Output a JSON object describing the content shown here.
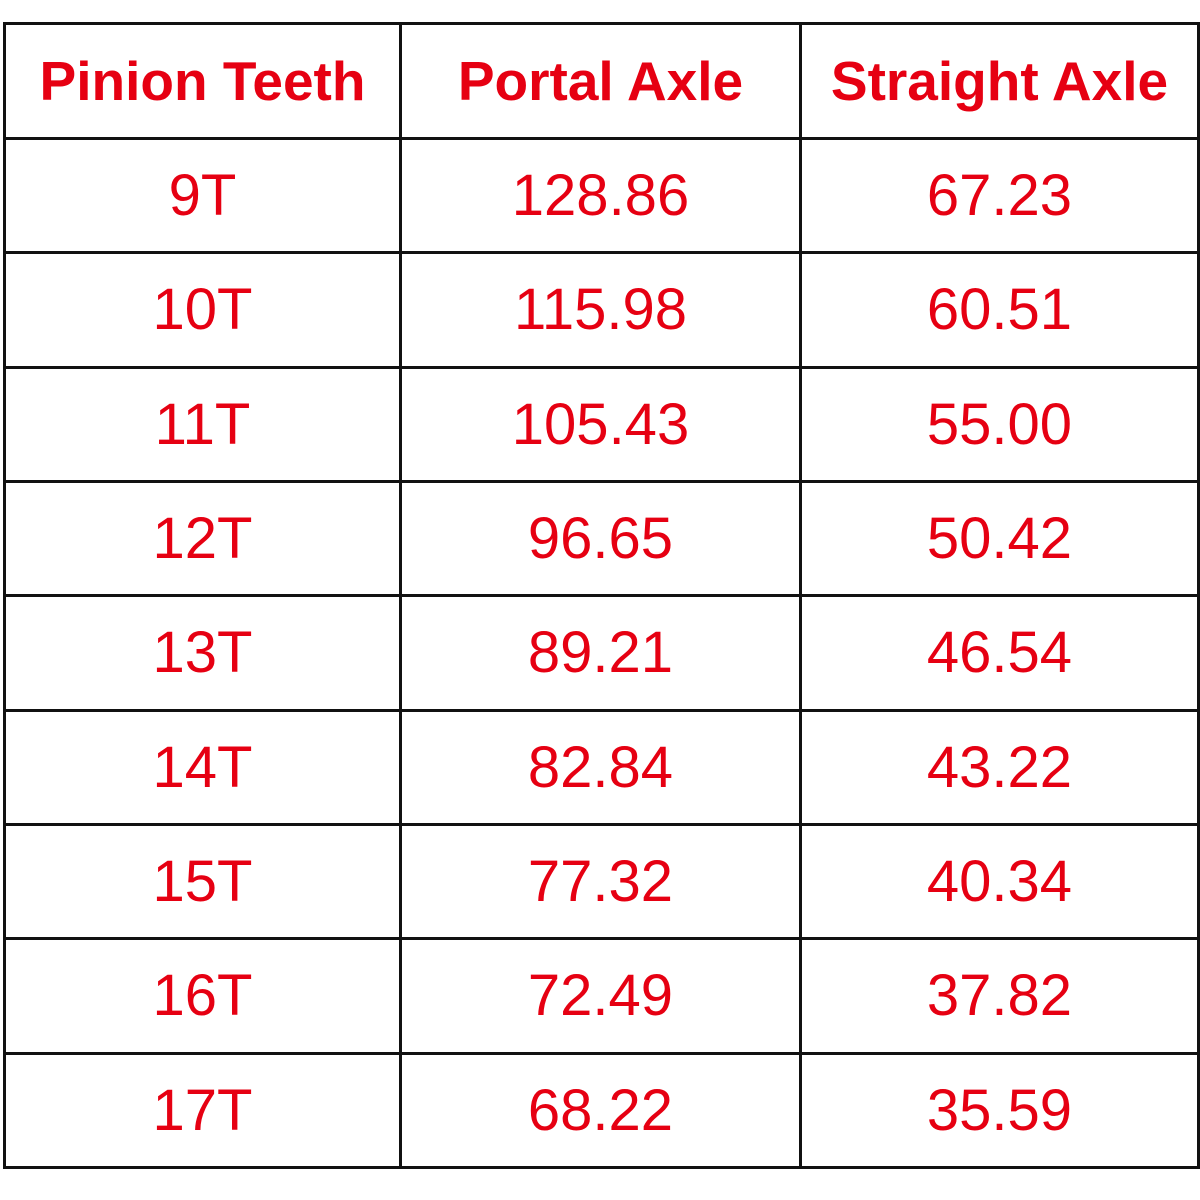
{
  "table": {
    "header": [
      "Pinion Teeth",
      "Portal Axle",
      "Straight Axle"
    ],
    "rows": [
      [
        "9T",
        "128.86",
        "67.23"
      ],
      [
        "10T",
        "115.98",
        "60.51"
      ],
      [
        "11T",
        "105.43",
        "55.00"
      ],
      [
        "12T",
        "96.65",
        "50.42"
      ],
      [
        "13T",
        "89.21",
        "46.54"
      ],
      [
        "14T",
        "82.84",
        "43.22"
      ],
      [
        "15T",
        "77.32",
        "40.34"
      ],
      [
        "16T",
        "72.49",
        "37.82"
      ],
      [
        "17T",
        "68.22",
        "35.59"
      ]
    ]
  }
}
